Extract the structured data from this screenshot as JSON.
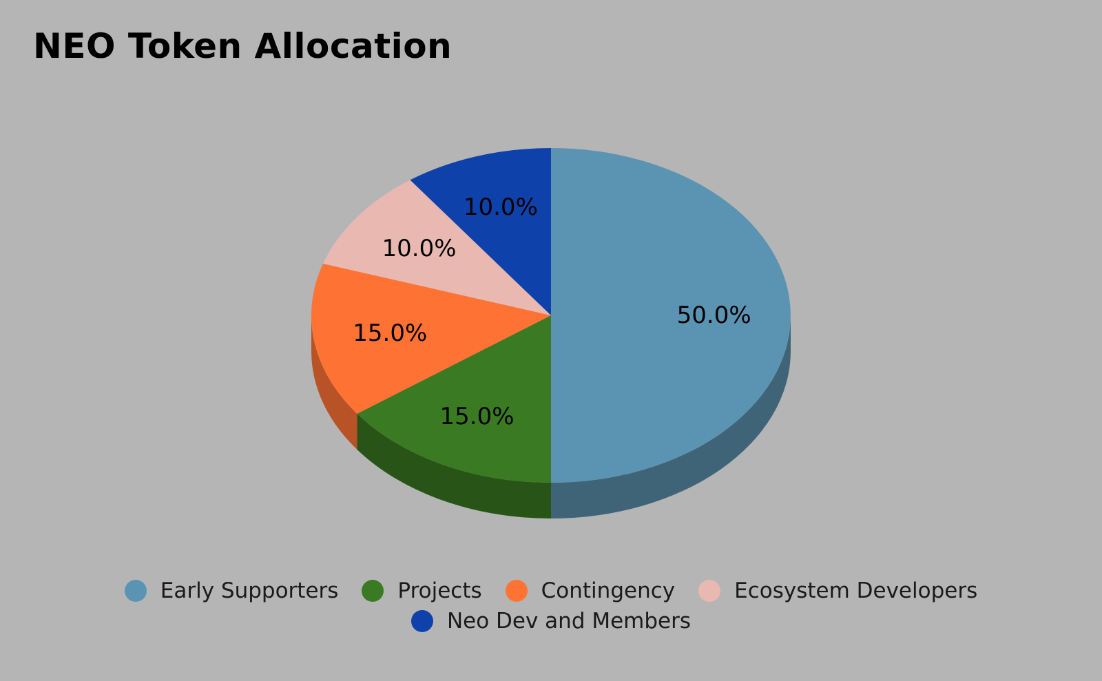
{
  "chart_data": {
    "type": "pie",
    "title": "NEO Token Allocation",
    "style": "3d",
    "legend_position": "bottom",
    "slices": [
      {
        "name": "Early Supporters",
        "value": 50,
        "label": "50.0%",
        "color": "#5b94b3",
        "side_color": "#3f6478"
      },
      {
        "name": "Projects",
        "value": 15,
        "label": "15.0%",
        "color": "#3a7a22",
        "side_color": "#285517"
      },
      {
        "name": "Contingency",
        "value": 15,
        "label": "15.0%",
        "color": "#fe7234",
        "side_color": "#b75327"
      },
      {
        "name": "Ecosystem Developers",
        "value": 10,
        "label": "10.0%",
        "color": "#e9b9b1",
        "side_color": "#b08c86"
      },
      {
        "name": "Neo Dev and Members",
        "value": 10,
        "label": "10.0%",
        "color": "#0e41a9",
        "side_color": "#0a2f7a"
      }
    ]
  }
}
